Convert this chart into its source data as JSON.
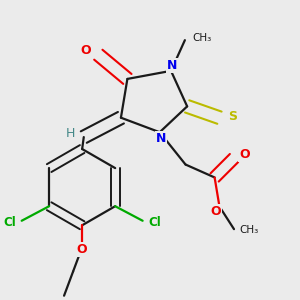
{
  "background_color": "#ebebeb",
  "bond_color": "#1a1a1a",
  "colors": {
    "N": "#0000ee",
    "O": "#ee0000",
    "S": "#bbbb00",
    "Cl": "#00aa00",
    "C": "#1a1a1a",
    "H": "#448888"
  },
  "figsize": [
    3.0,
    3.0
  ],
  "dpi": 100
}
